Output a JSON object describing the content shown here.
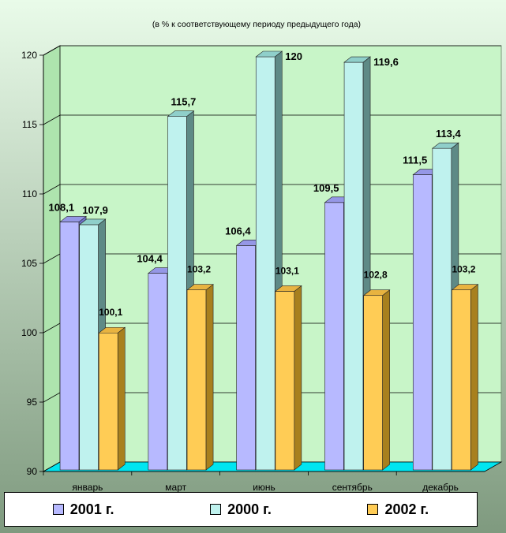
{
  "chart_data": {
    "type": "bar",
    "subtitle": "(в % к  соответствующему  периоду  предыдущего  года)",
    "categories": [
      "январь",
      "март",
      "июнь",
      "сентябрь",
      "декабрь"
    ],
    "series": [
      {
        "name": "2001 г.",
        "values": [
          108.1,
          104.4,
          106.4,
          109.5,
          111.5
        ],
        "labels": [
          "108,1",
          "104,4",
          "106,4",
          "109,5",
          "111,5"
        ],
        "color": "#b7b9ff",
        "dark": "#6e70c8",
        "top": "#9597e6"
      },
      {
        "name": "2000 г.",
        "values": [
          107.9,
          115.7,
          120,
          119.6,
          113.4
        ],
        "labels": [
          "107,9",
          "115,7",
          "120",
          "119,6",
          "113,4"
        ],
        "color": "#bff2ee",
        "dark": "#5e8a86",
        "top": "#8fcfca"
      },
      {
        "name": "2002 г.",
        "values": [
          100.1,
          103.2,
          103.1,
          102.8,
          103.2
        ],
        "labels": [
          "100,1",
          "103,2",
          "103,1",
          "102,8",
          "103,2"
        ],
        "color": "#ffcc55",
        "dark": "#a8801e",
        "top": "#e8b340"
      }
    ],
    "ylim": [
      90,
      120
    ],
    "yticks": [
      "90",
      "95",
      "100",
      "105",
      "110",
      "115",
      "120"
    ],
    "grid": true,
    "legend_position": "bottom",
    "colors": {
      "background": "#c6f2c6",
      "gridline": "#000000",
      "floor": "#00e5f0"
    }
  }
}
